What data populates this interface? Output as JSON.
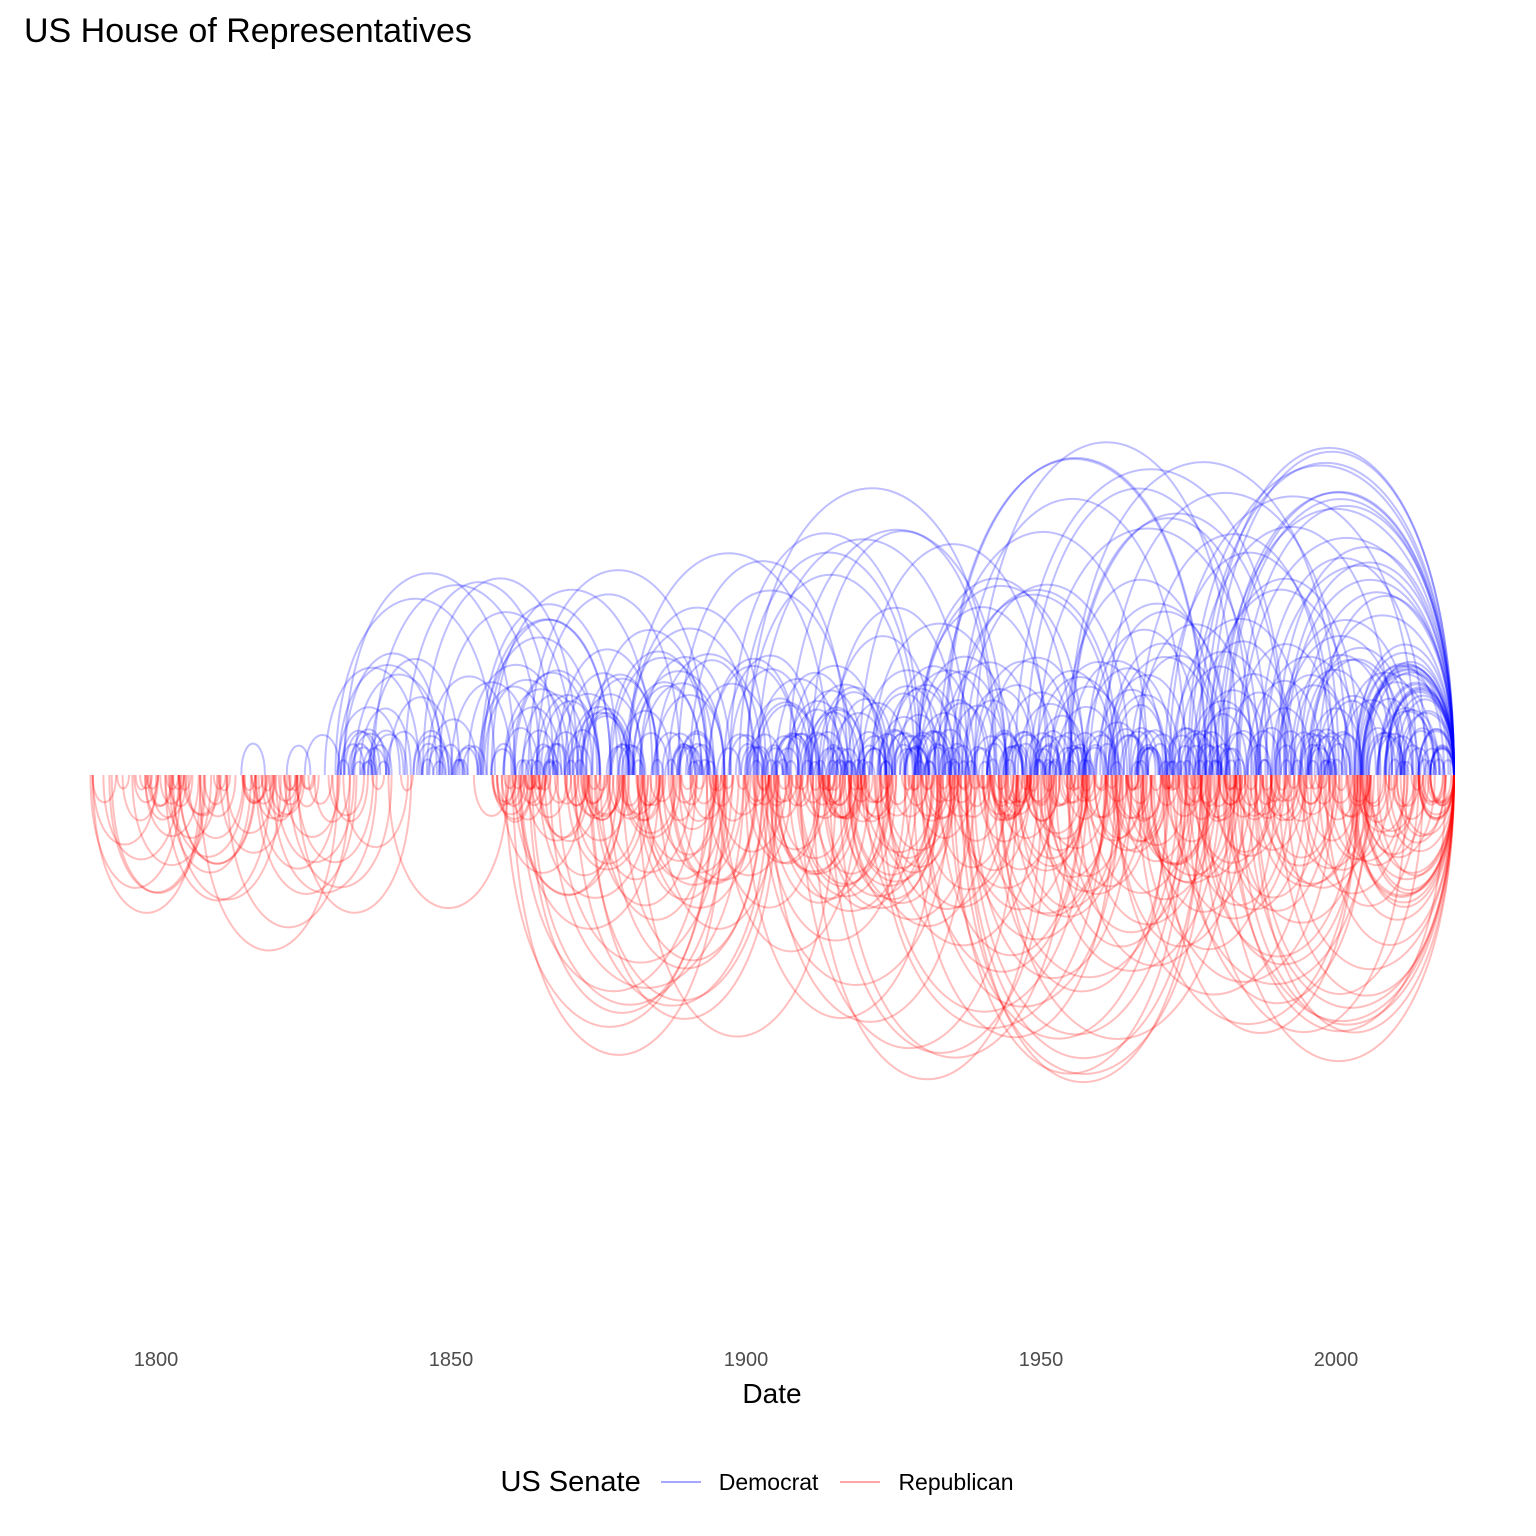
{
  "title": "US House of Representatives",
  "chart_data": {
    "type": "arc",
    "title": "US House of Representatives",
    "xlabel": "Date",
    "ylabel": "",
    "xlim": [
      1788,
      2020
    ],
    "x_ticks": [
      1800,
      1850,
      1900,
      1950,
      2000
    ],
    "x_tick_labels": [
      "1800",
      "1850",
      "1900",
      "1950",
      "2000"
    ],
    "grid": false,
    "legend_position": "bottom",
    "legend_title": "US Senate",
    "series": [
      {
        "name": "Democrat",
        "color": "#0000FF",
        "side": "above",
        "arcs_per_period": [
          {
            "from": 1810,
            "to": 1830,
            "count": 4,
            "max_span": 16
          },
          {
            "from": 1830,
            "to": 1860,
            "count": 60,
            "max_span": 30
          },
          {
            "from": 1860,
            "to": 1900,
            "count": 90,
            "max_span": 34
          },
          {
            "from": 1900,
            "to": 1950,
            "count": 170,
            "max_span": 46
          },
          {
            "from": 1950,
            "to": 2020,
            "count": 220,
            "max_span": 46
          }
        ]
      },
      {
        "name": "Republican",
        "color": "#FF0000",
        "side": "below",
        "arcs_per_period": [
          {
            "from": 1788,
            "to": 1826,
            "count": 70,
            "max_span": 24
          },
          {
            "from": 1826,
            "to": 1856,
            "count": 8,
            "max_span": 22
          },
          {
            "from": 1856,
            "to": 1900,
            "count": 110,
            "max_span": 36
          },
          {
            "from": 1900,
            "to": 1950,
            "count": 170,
            "max_span": 42
          },
          {
            "from": 1950,
            "to": 2020,
            "count": 200,
            "max_span": 40
          }
        ]
      }
    ]
  },
  "legend": {
    "title": "US Senate",
    "items": [
      {
        "label": "Democrat",
        "color": "#0000FF"
      },
      {
        "label": "Republican",
        "color": "#FF0000"
      }
    ]
  }
}
